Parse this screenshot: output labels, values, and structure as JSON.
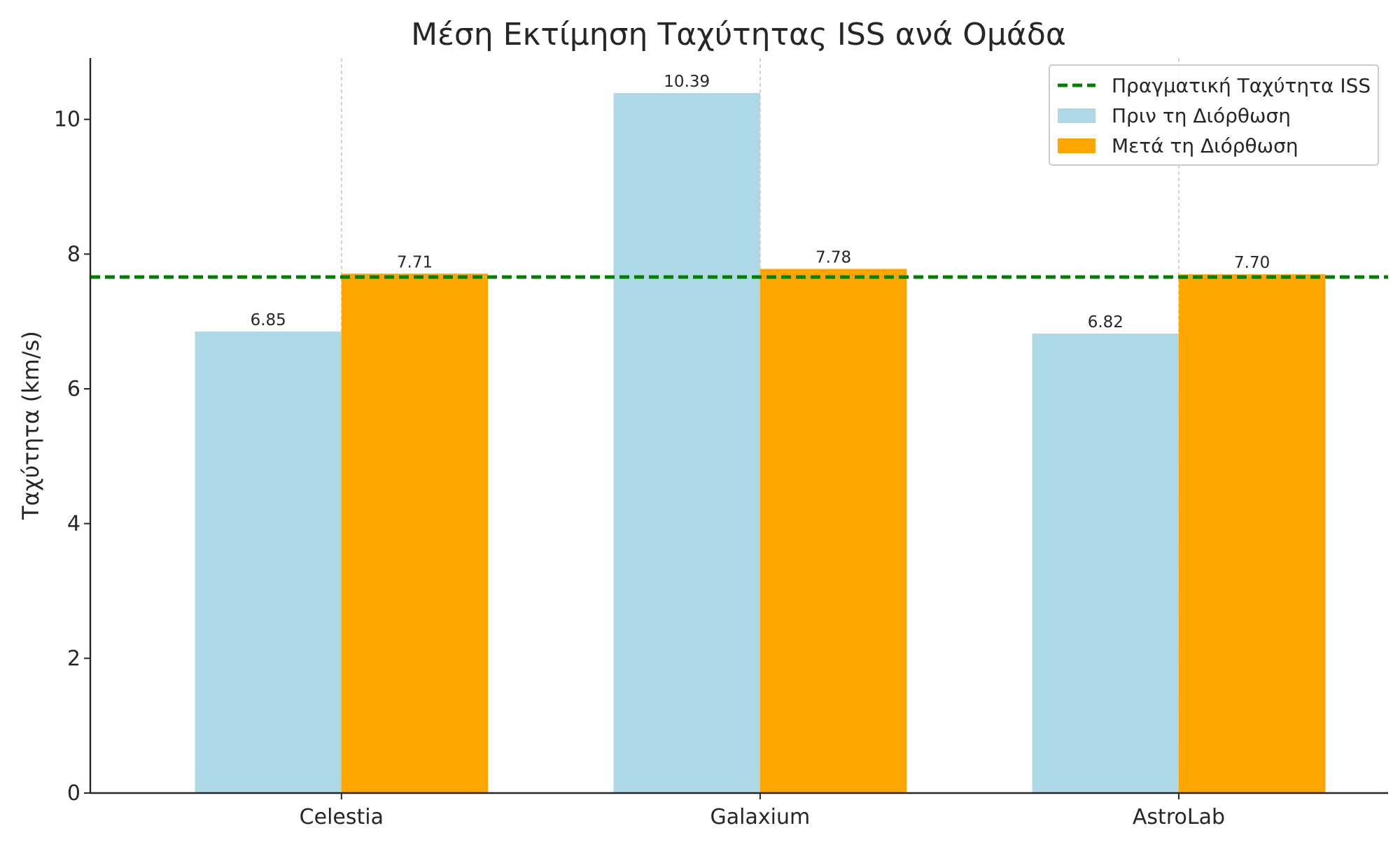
{
  "chart_data": {
    "type": "bar",
    "title": "Μέση Εκτίμηση Ταχύτητας ISS ανά Ομάδα",
    "xlabel": "",
    "ylabel": "Ταχύτητα (km/s)",
    "categories": [
      "Celestia",
      "Galaxium",
      "AstroLab"
    ],
    "series": [
      {
        "name": "Πριν τη Διόρθωση",
        "values": [
          6.85,
          10.39,
          6.82
        ],
        "labels": [
          "6.85",
          "10.39",
          "6.82"
        ],
        "color": "#ADD8E6"
      },
      {
        "name": "Μετά τη Διόρθωση",
        "values": [
          7.71,
          7.78,
          7.7
        ],
        "labels": [
          "7.71",
          "7.78",
          "7.70"
        ],
        "color": "#FFA500"
      }
    ],
    "reference_line": {
      "name": "Πραγματική Ταχύτητα ISS",
      "value": 7.66,
      "color": "#008000",
      "style": "dashed"
    },
    "yticks": [
      0,
      2,
      4,
      6,
      8,
      10
    ],
    "ylim": [
      0,
      10.91
    ],
    "grid": "vertical-dashed",
    "legend": "top-right"
  }
}
